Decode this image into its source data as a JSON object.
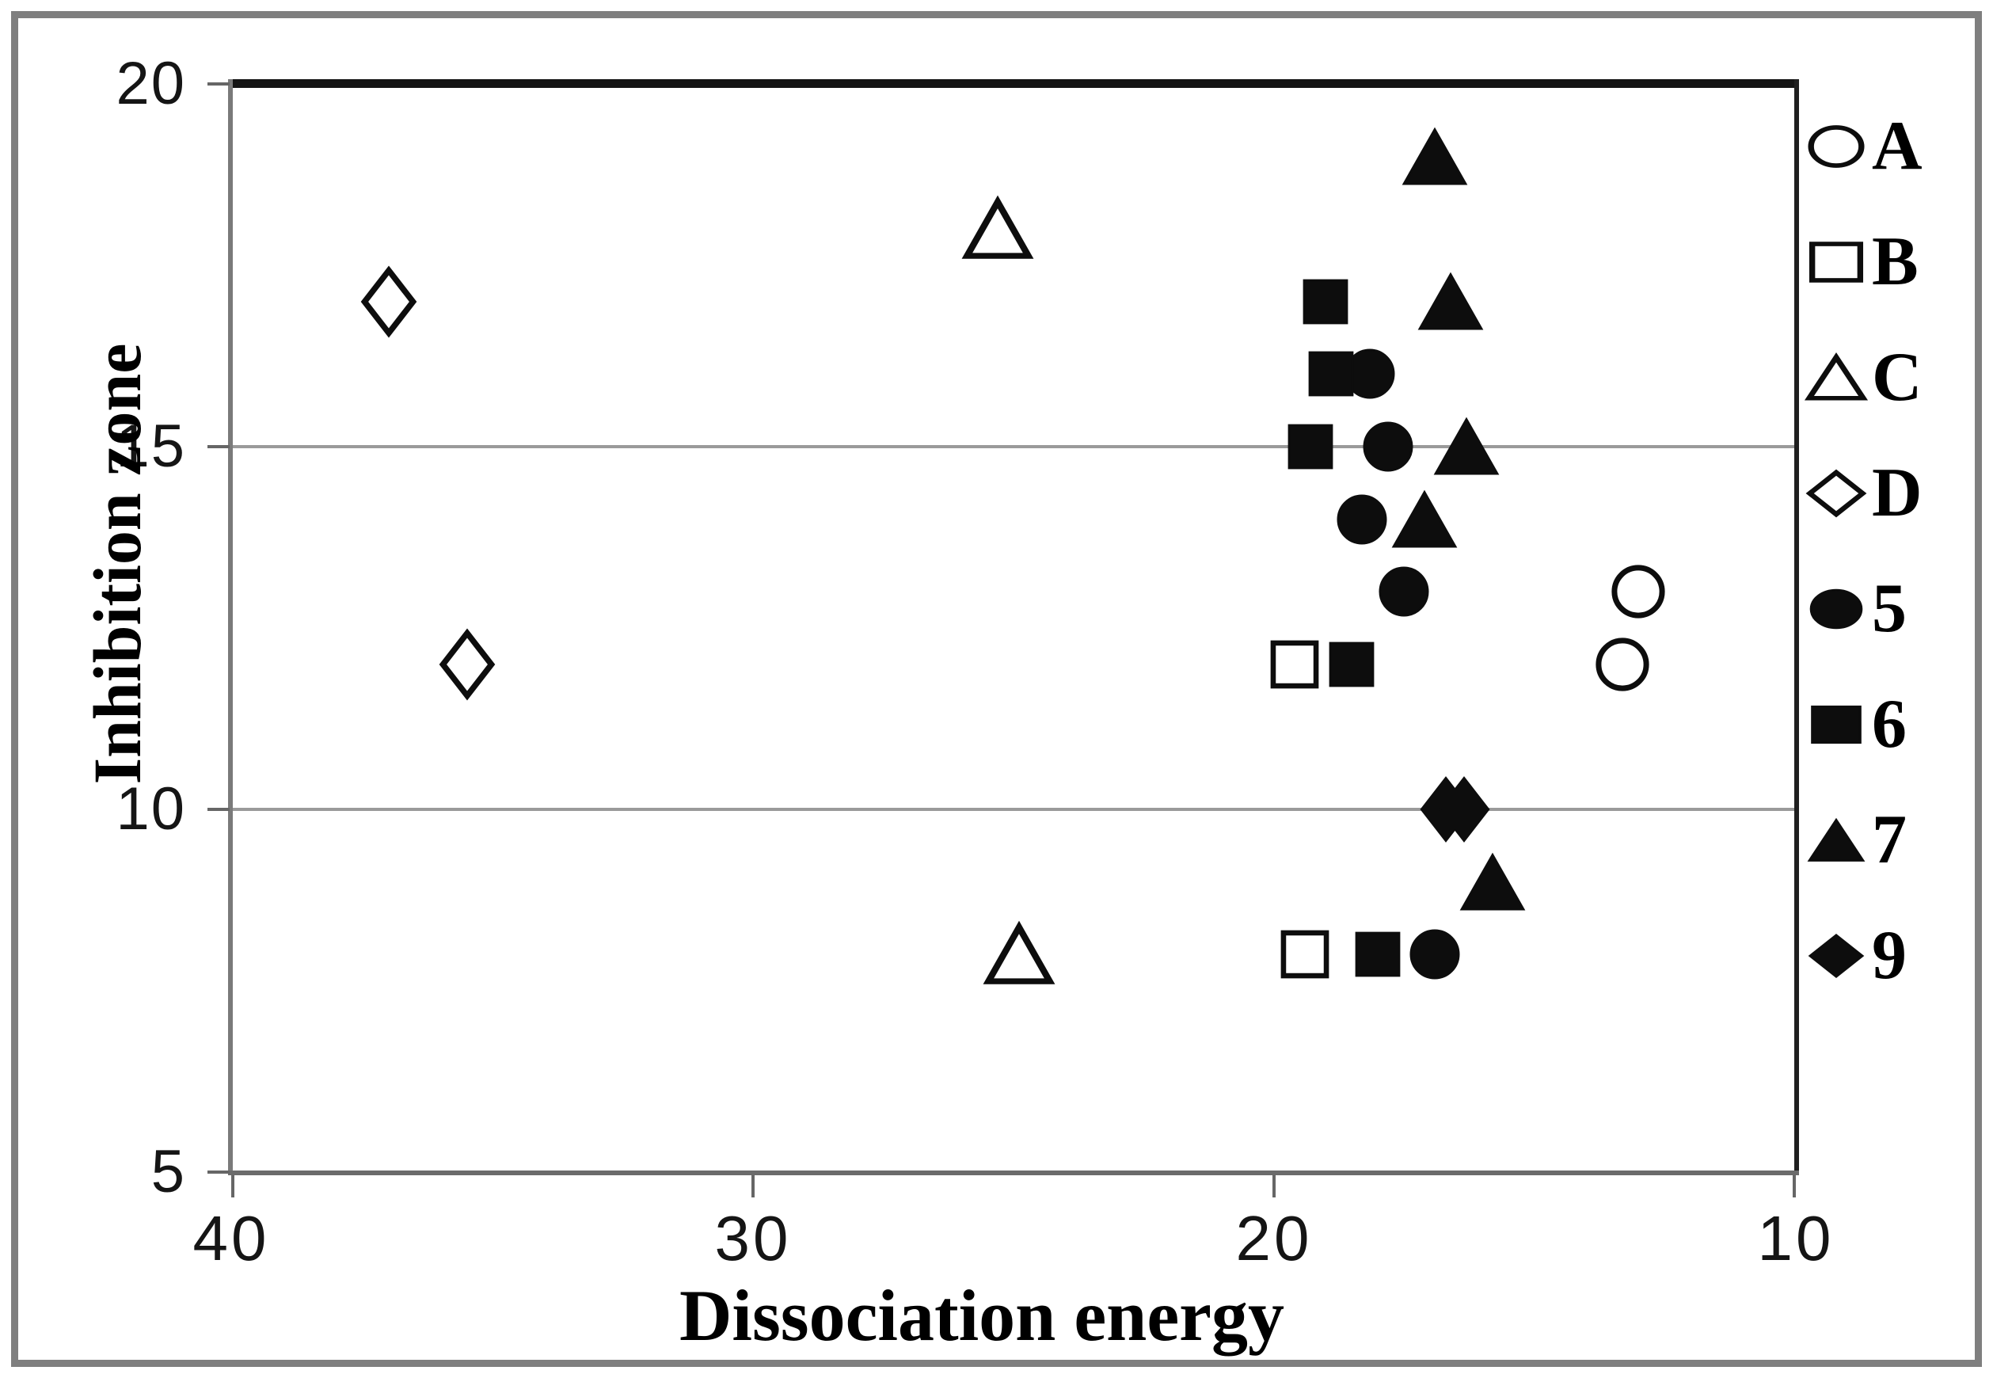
{
  "chart_data": {
    "type": "scatter",
    "title": "",
    "xlabel": "Dissociation energy",
    "ylabel": "Inhibition zone",
    "x_axis": {
      "min": 10,
      "max": 40,
      "reversed": true,
      "ticks": [
        "40",
        "30",
        "20",
        "10"
      ],
      "tick_values": [
        40,
        30,
        20,
        10
      ]
    },
    "y_axis": {
      "min": 5,
      "max": 20,
      "ticks": [
        "20",
        "15",
        "10",
        "5"
      ],
      "tick_values": [
        20,
        15,
        10,
        5
      ]
    },
    "gridlines_y": [
      15,
      10
    ],
    "grid": "horizontal-only",
    "legend_position": "right-outside",
    "series": [
      {
        "name": "A",
        "marker": "circle",
        "fill": "open",
        "points": [
          [
            13.0,
            13
          ],
          [
            13.3,
            12
          ]
        ]
      },
      {
        "name": "B",
        "marker": "square",
        "fill": "open",
        "points": [
          [
            19.6,
            12
          ],
          [
            19.4,
            8
          ]
        ]
      },
      {
        "name": "C",
        "marker": "triangle",
        "fill": "open",
        "points": [
          [
            25.3,
            18
          ],
          [
            24.9,
            8
          ]
        ]
      },
      {
        "name": "D",
        "marker": "diamond",
        "fill": "open",
        "points": [
          [
            37.0,
            17
          ],
          [
            35.5,
            12
          ]
        ]
      },
      {
        "name": "5",
        "marker": "circle",
        "fill": "solid",
        "points": [
          [
            18.15,
            16
          ],
          [
            17.8,
            15
          ],
          [
            18.3,
            14
          ],
          [
            17.5,
            13
          ],
          [
            16.9,
            8
          ]
        ]
      },
      {
        "name": "6",
        "marker": "square",
        "fill": "solid",
        "points": [
          [
            19.0,
            17
          ],
          [
            18.9,
            16
          ],
          [
            19.3,
            15
          ],
          [
            18.5,
            12
          ],
          [
            18.0,
            8
          ]
        ]
      },
      {
        "name": "7",
        "marker": "triangle",
        "fill": "solid",
        "points": [
          [
            16.9,
            19
          ],
          [
            16.6,
            17
          ],
          [
            16.3,
            15
          ],
          [
            17.1,
            14
          ],
          [
            15.8,
            9
          ]
        ]
      },
      {
        "name": "9",
        "marker": "diamond",
        "fill": "solid",
        "points": [
          [
            16.7,
            10
          ],
          [
            16.35,
            10
          ]
        ]
      }
    ],
    "colors": {
      "marker": "#0d0d0d",
      "grid": "#9a9a9a",
      "frame_top": "#141414",
      "frame_side": "#7a7a7a",
      "outer_border": "#7f7f7f",
      "background": "#ffffff",
      "text": "#000000"
    }
  }
}
